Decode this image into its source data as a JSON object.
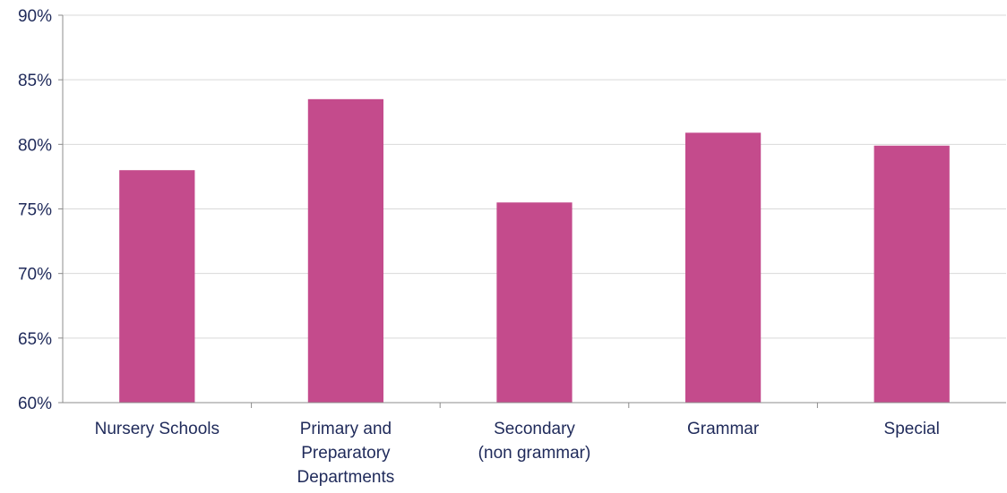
{
  "chart_data": {
    "type": "bar",
    "categories": [
      [
        "Nursery Schools"
      ],
      [
        "Primary and",
        "Preparatory",
        "Departments"
      ],
      [
        "Secondary",
        "(non grammar)"
      ],
      [
        "Grammar"
      ],
      [
        "Special"
      ]
    ],
    "values": [
      78.0,
      83.5,
      75.5,
      80.9,
      79.9
    ],
    "ylim": [
      60,
      90
    ],
    "yticks": [
      60,
      65,
      70,
      75,
      80,
      85,
      90
    ],
    "ytick_labels": [
      "60%",
      "65%",
      "70%",
      "75%",
      "80%",
      "85%",
      "90%"
    ],
    "title": "",
    "xlabel": "",
    "ylabel": "",
    "bar_color": "#c44b8c",
    "grid": true,
    "legend": "none"
  }
}
